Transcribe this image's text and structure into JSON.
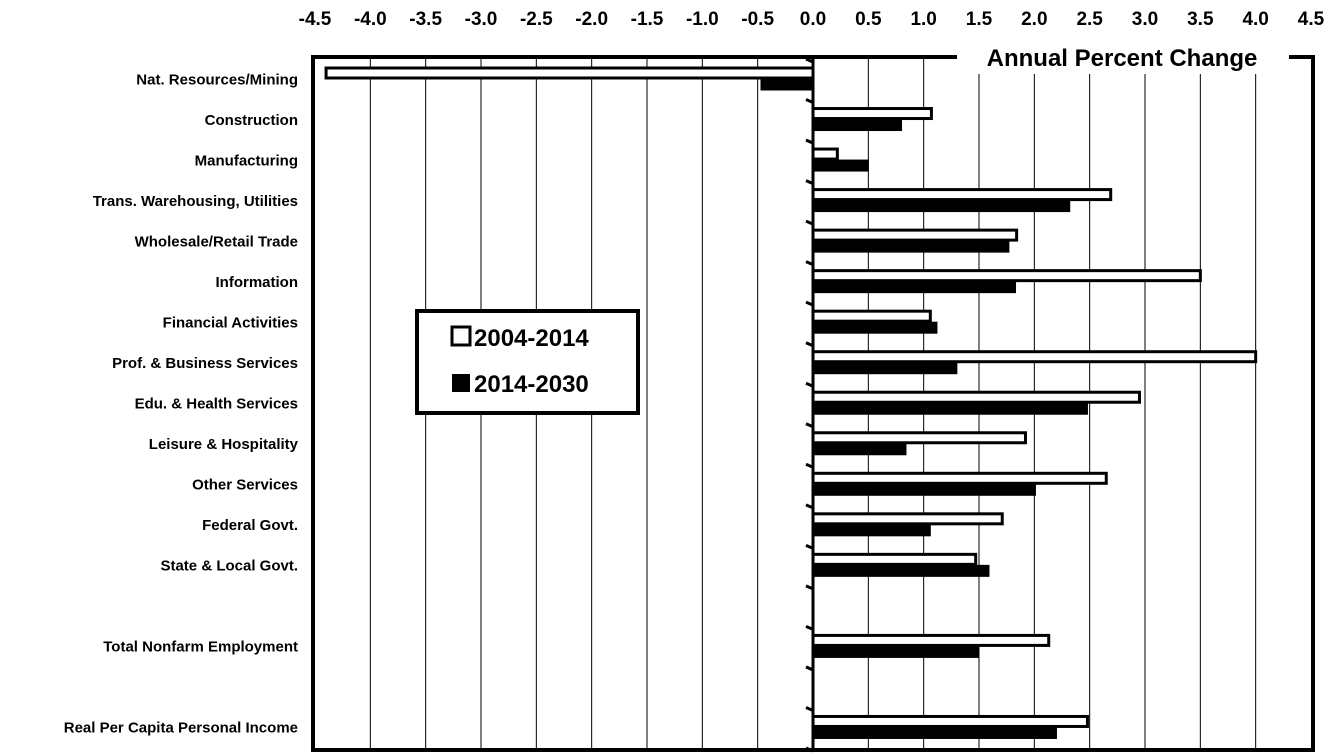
{
  "chart_data": {
    "type": "bar",
    "orientation": "horizontal",
    "title": "Annual Percent Change",
    "xlim": [
      -4.5,
      4.5
    ],
    "x_ticks": [
      "-4.5",
      "-4.0",
      "-3.5",
      "-3.0",
      "-2.5",
      "-2.0",
      "-1.5",
      "-1.0",
      "-0.5",
      "0.0",
      "0.5",
      "1.0",
      "1.5",
      "2.0",
      "2.5",
      "3.0",
      "3.5",
      "4.0",
      "4.5"
    ],
    "grid": "vertical",
    "legend_position": "left-middle",
    "categories": [
      "Nat. Resources/Mining",
      "Construction",
      "Manufacturing",
      "Trans. Warehousing, Utilities",
      "Wholesale/Retail Trade",
      "Information",
      "Financial Activities",
      "Prof. & Business Services",
      "Edu. & Health Services",
      "Leisure & Hospitality",
      "Other Services",
      "Federal Govt.",
      "State & Local Govt.",
      "",
      "Total Nonfarm Employment",
      "",
      "Real Per Capita Personal Income"
    ],
    "series": [
      {
        "name": "2004-2014",
        "color": "#ffffff",
        "values": [
          -4.4,
          1.07,
          0.22,
          2.69,
          1.84,
          3.5,
          1.06,
          4.0,
          2.95,
          1.92,
          2.65,
          1.71,
          1.47,
          null,
          2.13,
          null,
          2.48
        ]
      },
      {
        "name": "2014-2030",
        "color": "#000000",
        "values": [
          -0.47,
          0.8,
          0.5,
          2.32,
          1.77,
          1.83,
          1.12,
          1.3,
          2.48,
          0.84,
          2.01,
          1.06,
          1.59,
          null,
          1.5,
          null,
          2.2
        ]
      }
    ]
  }
}
